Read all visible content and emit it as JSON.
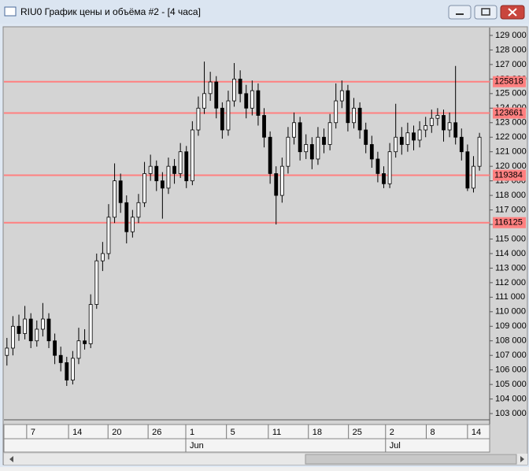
{
  "window": {
    "title": "RIU0 График цены и объёма #2 - [4 часа]"
  },
  "chart_data": {
    "type": "candlestick",
    "candles": [
      [
        107000,
        108200,
        106300,
        107500
      ],
      [
        107500,
        109700,
        107000,
        109000
      ],
      [
        109000,
        109800,
        108000,
        108500
      ],
      [
        108500,
        110400,
        108100,
        109500
      ],
      [
        109500,
        109900,
        107500,
        108000
      ],
      [
        108000,
        109400,
        107600,
        108800
      ],
      [
        108800,
        110600,
        108300,
        109500
      ],
      [
        109500,
        109900,
        107500,
        108000
      ],
      [
        108000,
        108500,
        106400,
        107000
      ],
      [
        107000,
        107600,
        105900,
        106500
      ],
      [
        106500,
        106900,
        104900,
        105300
      ],
      [
        105300,
        107300,
        105000,
        106800
      ],
      [
        106800,
        108900,
        106400,
        108000
      ],
      [
        108000,
        108800,
        107400,
        107800
      ],
      [
        107800,
        111200,
        107500,
        110500
      ],
      [
        110500,
        114000,
        110200,
        113500
      ],
      [
        113500,
        114800,
        112800,
        114000
      ],
      [
        114000,
        117400,
        113600,
        116500
      ],
      [
        116500,
        120200,
        116100,
        119000
      ],
      [
        119000,
        119500,
        116800,
        117500
      ],
      [
        117500,
        118000,
        114700,
        115500
      ],
      [
        115500,
        117000,
        115100,
        116500
      ],
      [
        116500,
        118100,
        116100,
        117500
      ],
      [
        117500,
        120300,
        117200,
        119500
      ],
      [
        119500,
        120800,
        119000,
        120000
      ],
      [
        120000,
        120400,
        118300,
        119000
      ],
      [
        119000,
        119600,
        116400,
        118500
      ],
      [
        118500,
        120600,
        118100,
        120000
      ],
      [
        120000,
        120500,
        118800,
        119500
      ],
      [
        119500,
        121600,
        119200,
        121000
      ],
      [
        121000,
        121400,
        118500,
        119000
      ],
      [
        119000,
        123100,
        118700,
        122500
      ],
      [
        122500,
        124800,
        122100,
        124000
      ],
      [
        124000,
        127200,
        123600,
        125000
      ],
      [
        125000,
        126500,
        124500,
        125800
      ],
      [
        125800,
        126200,
        123300,
        124000
      ],
      [
        124000,
        124400,
        121900,
        122500
      ],
      [
        122500,
        125200,
        122100,
        124500
      ],
      [
        124500,
        127100,
        124100,
        126000
      ],
      [
        126000,
        126600,
        124400,
        125000
      ],
      [
        125000,
        125600,
        123300,
        124000
      ],
      [
        124000,
        125900,
        123500,
        125200
      ],
      [
        125200,
        125700,
        122800,
        123500
      ],
      [
        123500,
        124000,
        121300,
        122000
      ],
      [
        122000,
        122400,
        118800,
        119500
      ],
      [
        119500,
        120000,
        116000,
        118000
      ],
      [
        118000,
        120600,
        117500,
        120000
      ],
      [
        120000,
        122700,
        119500,
        122000
      ],
      [
        122000,
        123700,
        121500,
        123000
      ],
      [
        123000,
        123400,
        120400,
        121000
      ],
      [
        121000,
        122200,
        120500,
        121500
      ],
      [
        121500,
        122000,
        119800,
        120500
      ],
      [
        120500,
        122700,
        120100,
        122000
      ],
      [
        122000,
        122600,
        120900,
        121500
      ],
      [
        121500,
        123600,
        121100,
        123000
      ],
      [
        123000,
        125700,
        122600,
        124500
      ],
      [
        124500,
        125900,
        124000,
        125200
      ],
      [
        125200,
        125600,
        122400,
        123000
      ],
      [
        123000,
        124700,
        122600,
        124000
      ],
      [
        124000,
        124400,
        121900,
        122500
      ],
      [
        122500,
        123000,
        120900,
        121500
      ],
      [
        121500,
        122100,
        119900,
        120500
      ],
      [
        120500,
        121000,
        118900,
        119500
      ],
      [
        119500,
        120000,
        118500,
        118800
      ],
      [
        118800,
        121600,
        118500,
        121000
      ],
      [
        121000,
        124300,
        120600,
        122000
      ],
      [
        122000,
        122700,
        120800,
        121500
      ],
      [
        121500,
        123000,
        121000,
        122300
      ],
      [
        122300,
        122800,
        121100,
        121800
      ],
      [
        121800,
        123100,
        121300,
        122500
      ],
      [
        122500,
        123400,
        122000,
        122800
      ],
      [
        122800,
        123900,
        122300,
        123300
      ],
      [
        123300,
        124000,
        122800,
        123500
      ],
      [
        123500,
        123900,
        121700,
        122500
      ],
      [
        122500,
        123700,
        122000,
        123000
      ],
      [
        123000,
        126900,
        121500,
        122000
      ],
      [
        122000,
        122600,
        120400,
        121000
      ],
      [
        121000,
        121500,
        118300,
        118500
      ],
      [
        118500,
        120700,
        118200,
        120000
      ],
      [
        120000,
        122300,
        119700,
        122000
      ]
    ],
    "levels": [
      125818,
      123661,
      119384,
      116125
    ],
    "level_color": "#ff8080",
    "ylim": [
      102570,
      129540
    ],
    "yticks": [
      {
        "value": 103000,
        "label": "103 000"
      },
      {
        "value": 104000,
        "label": "104 000"
      },
      {
        "value": 105000,
        "label": "105 000"
      },
      {
        "value": 106000,
        "label": "106 000"
      },
      {
        "value": 107000,
        "label": "107 000"
      },
      {
        "value": 108000,
        "label": "108 000"
      },
      {
        "value": 109000,
        "label": "109 000"
      },
      {
        "value": 110000,
        "label": "110 000"
      },
      {
        "value": 111000,
        "label": "111 000"
      },
      {
        "value": 112000,
        "label": "112 000"
      },
      {
        "value": 113000,
        "label": "113 000"
      },
      {
        "value": 114000,
        "label": "114 000"
      },
      {
        "value": 115000,
        "label": "115 000"
      },
      {
        "value": 116000,
        "label": "116 000"
      },
      {
        "value": 117000,
        "label": "117 000"
      },
      {
        "value": 118000,
        "label": "118 000"
      },
      {
        "value": 119000,
        "label": "119 000"
      },
      {
        "value": 120000,
        "label": "120 000"
      },
      {
        "value": 121000,
        "label": "121 000"
      },
      {
        "value": 122000,
        "label": "122 000"
      },
      {
        "value": 123000,
        "label": "123 000"
      },
      {
        "value": 124000,
        "label": "124 000"
      },
      {
        "value": 125000,
        "label": "125 000"
      },
      {
        "value": 126000,
        "label": "126 000"
      },
      {
        "value": 127000,
        "label": "127 000"
      },
      {
        "value": 128000,
        "label": "128 000"
      },
      {
        "value": 129000,
        "label": "129 000"
      }
    ],
    "xlim": [
      -0.5,
      80.7
    ],
    "xticks": [
      {
        "value": 3.3,
        "label": "7"
      },
      {
        "value": 10.3,
        "label": "14"
      },
      {
        "value": 16.9,
        "label": "20"
      },
      {
        "value": 23.6,
        "label": "26"
      },
      {
        "value": 29.9,
        "label": "1"
      },
      {
        "value": 36.7,
        "label": "5"
      },
      {
        "value": 43.7,
        "label": "11"
      },
      {
        "value": 50.4,
        "label": "18"
      },
      {
        "value": 57.1,
        "label": "25"
      },
      {
        "value": 63.3,
        "label": "2"
      },
      {
        "value": 70.1,
        "label": "8"
      },
      {
        "value": 77,
        "label": "14"
      }
    ],
    "month_ticks": [
      {
        "value": 29.9,
        "label": "Jun"
      },
      {
        "value": 63.3,
        "label": "Jul"
      }
    ]
  }
}
